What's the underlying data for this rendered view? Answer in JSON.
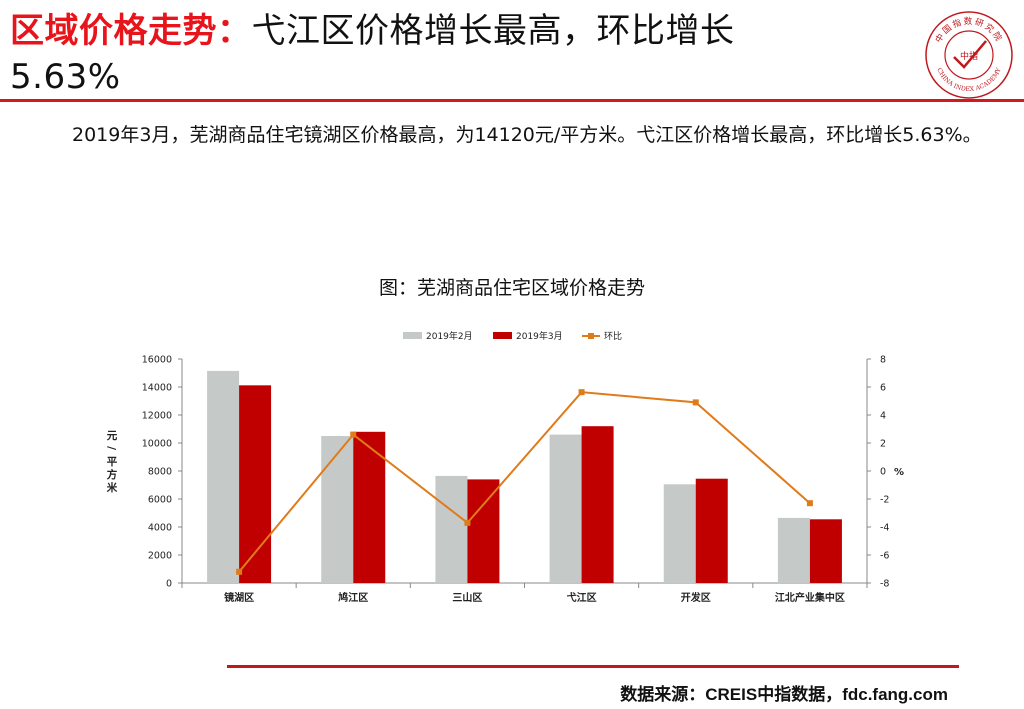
{
  "header": {
    "title_highlight": "区域价格走势：",
    "title_rest": "弋江区价格增长最高，环比增长",
    "title_line2": "5.63%"
  },
  "logo": {
    "top_text": "中国指数研究院",
    "bottom_text": "CHINA INDEX ACADEMY",
    "center_text": "中指",
    "color": "#c0191d"
  },
  "intro_text": "2019年3月，芜湖商品住宅镜湖区价格最高，为14120元/平方米。弋江区价格增长最高，环比增长5.63%。",
  "chart_title": "图：芜湖商品住宅区域价格走势",
  "source": "数据来源：CREIS中指数据，fdc.fang.com",
  "chart_data": {
    "type": "bar",
    "categories": [
      "镜湖区",
      "鸠江区",
      "三山区",
      "弋江区",
      "开发区",
      "江北产业集中区"
    ],
    "series": [
      {
        "name": "2019年2月",
        "kind": "bar",
        "color": "#c5c9c7",
        "values": [
          15150,
          10500,
          7650,
          10600,
          7050,
          4650
        ]
      },
      {
        "name": "2019年3月",
        "kind": "bar",
        "color": "#c00000",
        "values": [
          14120,
          10800,
          7400,
          11200,
          7450,
          4550
        ]
      },
      {
        "name": "环比",
        "kind": "line",
        "axis": "right",
        "color": "#e07b1a",
        "values": [
          -7.2,
          2.6,
          -3.7,
          5.63,
          4.9,
          -2.3
        ]
      }
    ],
    "ylabel": "元/平方米",
    "ylabel2": "%",
    "ylim": [
      0,
      16000
    ],
    "y_ticks": [
      0,
      2000,
      4000,
      6000,
      8000,
      10000,
      12000,
      14000,
      16000
    ],
    "y2lim": [
      -8,
      8
    ],
    "y2_ticks": [
      -8,
      -6,
      -4,
      -2,
      0,
      2,
      4,
      6,
      8
    ],
    "legend_position": "top",
    "grid": false
  }
}
